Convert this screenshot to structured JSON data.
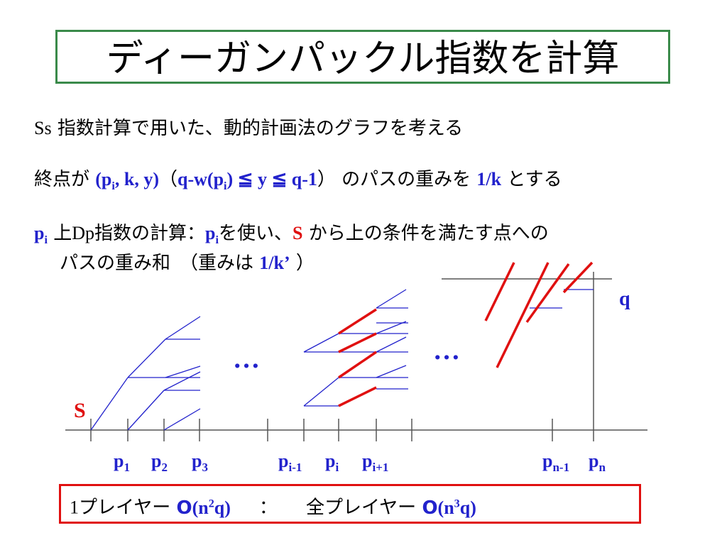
{
  "title": "ディーガンパックル指数を計算",
  "lines": {
    "l1_prefix": "Ss",
    "l1_text": " 指数計算で用いた、動的計画法のグラフを考える",
    "l2_a": "終点が ",
    "l2_node": "(p",
    "l2_node_sub": "i",
    "l2_node_rest": ", k, y)",
    "l2_paren_open": "（",
    "l2_cond": "q-w(p",
    "l2_cond_sub": "i",
    "l2_cond_rest": ") ≦ y ≦ q-1",
    "l2_paren_close": "）",
    "l2_b": " のパスの重みを ",
    "l2_weight": "1/k",
    "l2_c": " とする",
    "l3_p": "p",
    "l3_p_sub": "i",
    "l3_a": " 上",
    "l3_dp": "Dp",
    "l3_b": "指数の計算：",
    "l3_p2": "p",
    "l3_p2_sub": "i",
    "l3_c": "を使い、",
    "l3_s": "S",
    "l3_d": " から上の条件を満たす点への",
    "l4_a": "パスの重み和　（重みは ",
    "l4_weight": "1/k’",
    "l4_b": " ）"
  },
  "diagram": {
    "s_label": "S",
    "q_label": "q",
    "dots_left": "…",
    "dots_right": "…",
    "p_labels": [
      {
        "base": "p",
        "sub": "1"
      },
      {
        "base": "p",
        "sub": "2"
      },
      {
        "base": "p",
        "sub": "3"
      },
      {
        "base": "p",
        "sub": "i-1"
      },
      {
        "base": "p",
        "sub": "i"
      },
      {
        "base": "p",
        "sub": "i+1"
      },
      {
        "base": "p",
        "sub": "n-1"
      },
      {
        "base": "p",
        "sub": "n"
      }
    ]
  },
  "bottom": {
    "one": "1",
    "one_player": "プレイヤー ",
    "o1": "O",
    "o1_expr": "(n",
    "o1_exp": "2",
    "o1_end": "q)",
    "colon": "：",
    "all_player": "全プレイヤー ",
    "o2": "O",
    "o2_expr": "(n",
    "o2_exp": "3",
    "o2_end": "q)"
  },
  "colors": {
    "blue": "#2222cc",
    "red": "#e01010",
    "title_border": "#3a8a4a"
  }
}
